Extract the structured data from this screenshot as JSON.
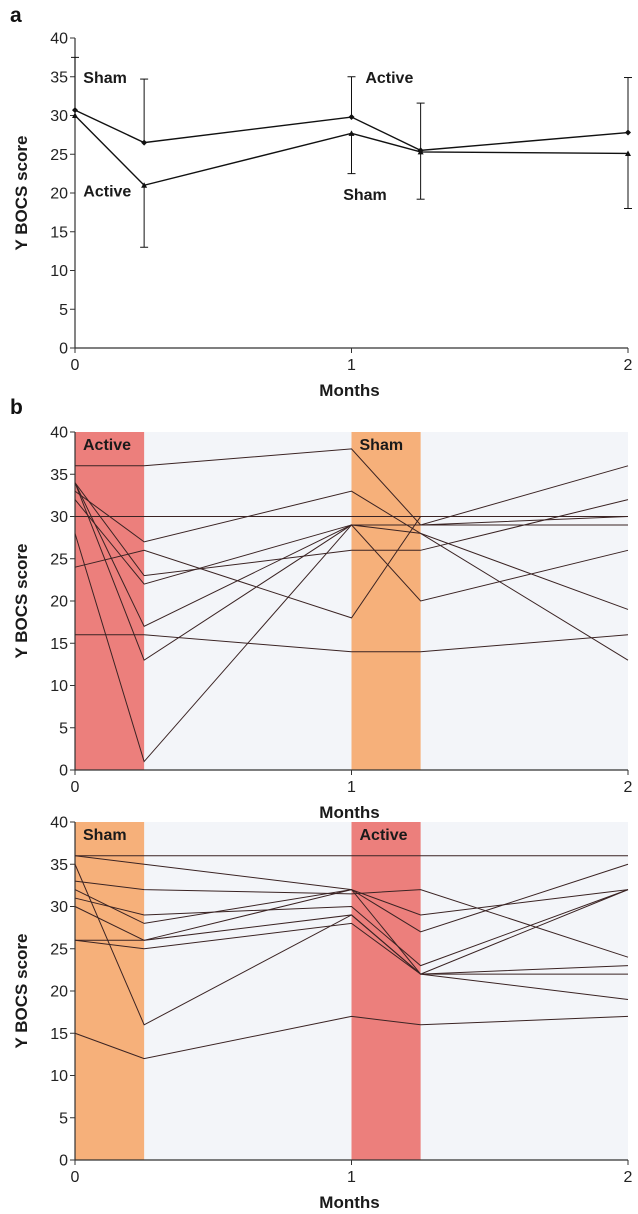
{
  "chart_data": [
    {
      "panel": "a",
      "type": "line",
      "xlabel": "Months",
      "ylabel": "Y BOCS score",
      "xlim": [
        0,
        2
      ],
      "ylim": [
        0,
        40
      ],
      "xticks": [
        "0",
        "1",
        "2"
      ],
      "yticks": [
        "0",
        "5",
        "10",
        "15",
        "20",
        "25",
        "30",
        "35",
        "40"
      ],
      "series": [
        {
          "marker": "diamond",
          "points": [
            {
              "x": 0,
              "y": 30.7,
              "err_hi": 6.8,
              "err_lo": 0
            },
            {
              "x": 0.25,
              "y": 26.5,
              "err_hi": 8.2,
              "err_lo": 0
            },
            {
              "x": 1,
              "y": 29.8,
              "err_hi": 5.2,
              "err_lo": 0
            },
            {
              "x": 1.25,
              "y": 25.5,
              "err_hi": 6.1,
              "err_lo": 0
            },
            {
              "x": 2,
              "y": 27.8,
              "err_hi": 7.1,
              "err_lo": 0
            }
          ]
        },
        {
          "marker": "triangle",
          "points": [
            {
              "x": 0,
              "y": 30.0,
              "err_hi": 0,
              "err_lo": 0
            },
            {
              "x": 0.25,
              "y": 21.0,
              "err_hi": 0,
              "err_lo": 8.0
            },
            {
              "x": 1,
              "y": 27.7,
              "err_hi": 0,
              "err_lo": 5.2
            },
            {
              "x": 1.25,
              "y": 25.3,
              "err_hi": 0,
              "err_lo": 6.1
            },
            {
              "x": 2,
              "y": 25.1,
              "err_hi": 0,
              "err_lo": 7.1
            }
          ]
        }
      ],
      "annotations": [
        {
          "text": "Sham",
          "x": 0.03,
          "y": 35
        },
        {
          "text": "Active",
          "x": 0.03,
          "y": 20.3
        },
        {
          "text": "Active",
          "x": 1.05,
          "y": 35
        },
        {
          "text": "Sham",
          "x": 0.97,
          "y": 19.9
        }
      ]
    },
    {
      "panel": "b",
      "type": "line",
      "xlabel": "Months",
      "ylabel": "Y BOCS score",
      "xlim": [
        0,
        2
      ],
      "ylim": [
        0,
        40
      ],
      "xticks": [
        "0",
        "1",
        "2"
      ],
      "yticks": [
        "0",
        "5",
        "10",
        "15",
        "20",
        "25",
        "30",
        "35",
        "40"
      ],
      "x_points": [
        0,
        0.25,
        1,
        1.25,
        2
      ],
      "bands": [
        {
          "label": "Active",
          "x0": 0,
          "x1": 0.25,
          "color": "#ec7f7c"
        },
        {
          "label": "Sham",
          "x0": 1,
          "x1": 1.25,
          "color": "#f6b07a"
        }
      ],
      "subjects": [
        [
          36,
          36,
          38,
          29,
          36
        ],
        [
          33,
          27,
          33,
          28,
          13
        ],
        [
          30,
          30,
          30,
          30,
          30
        ],
        [
          34,
          13,
          29,
          20,
          26
        ],
        [
          34,
          23,
          26,
          26,
          32
        ],
        [
          32,
          22,
          29,
          29,
          29
        ],
        [
          34,
          17,
          29,
          28,
          19
        ],
        [
          28,
          1,
          29,
          29,
          30
        ],
        [
          24,
          26,
          18,
          30,
          30
        ],
        [
          16,
          16,
          14,
          14,
          16
        ]
      ]
    },
    {
      "type": "line",
      "xlabel": "Months",
      "ylabel": "Y BOCS score",
      "xlim": [
        0,
        2
      ],
      "ylim": [
        0,
        40
      ],
      "xticks": [
        "0",
        "1",
        "2"
      ],
      "yticks": [
        "0",
        "5",
        "10",
        "15",
        "20",
        "25",
        "30",
        "35",
        "40"
      ],
      "x_points": [
        0,
        0.25,
        1,
        1.25,
        2
      ],
      "bands": [
        {
          "label": "Sham",
          "x0": 0,
          "x1": 0.25,
          "color": "#f6b07a"
        },
        {
          "label": "Active",
          "x0": 1,
          "x1": 1.25,
          "color": "#ec7f7c"
        }
      ],
      "subjects": [
        [
          36,
          36,
          36,
          36,
          36
        ],
        [
          36,
          35,
          32,
          22,
          32
        ],
        [
          33,
          32,
          31.5,
          32,
          24
        ],
        [
          32,
          28,
          32,
          27,
          35
        ],
        [
          31,
          29,
          30,
          23,
          32
        ],
        [
          30,
          26,
          29,
          22,
          23
        ],
        [
          26,
          26,
          32,
          29,
          32
        ],
        [
          26,
          25,
          28,
          22,
          19
        ],
        [
          35,
          16,
          29,
          22,
          22
        ],
        [
          15,
          12,
          17,
          16,
          17
        ]
      ]
    }
  ]
}
